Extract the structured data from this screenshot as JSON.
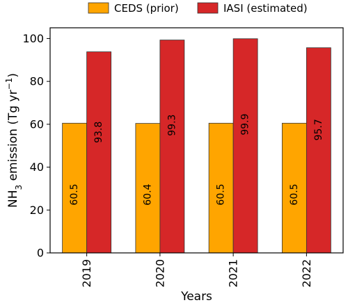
{
  "chart_data": {
    "type": "bar",
    "categories": [
      "2019",
      "2020",
      "2021",
      "2022"
    ],
    "series": [
      {
        "name": "CEDS (prior)",
        "values": [
          60.5,
          60.4,
          60.5,
          60.5
        ],
        "color": "#ffa500",
        "labels": [
          "60.5",
          "60.4",
          "60.5",
          "60.5"
        ]
      },
      {
        "name": "IASI (estimated)",
        "values": [
          93.8,
          99.3,
          99.9,
          95.7
        ],
        "color": "#d62728",
        "labels": [
          "93.8",
          "99.3",
          "99.9",
          "95.7"
        ]
      }
    ],
    "xlabel": "Years",
    "ylabel_main": "NH",
    "ylabel_sub": "3",
    "ylabel_rest": " emission (Tg yr",
    "ylabel_sup": "−1",
    "ylabel_end": ")",
    "ylim": [
      0,
      105
    ],
    "yticks": [
      "0",
      "20",
      "40",
      "60",
      "80",
      "100"
    ],
    "ytick_values": [
      0,
      20,
      40,
      60,
      80,
      100
    ],
    "grid": false,
    "legend_position": "top-center"
  }
}
